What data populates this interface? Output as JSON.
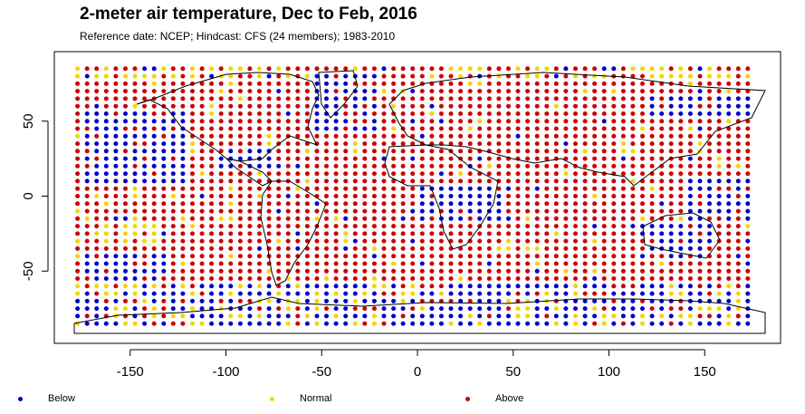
{
  "chart_data": {
    "type": "scatter",
    "title": "2-meter air temperature, Dec to Feb, 2016",
    "subtitle": "Reference date: NCEP; Hindcast: CFS (24 members); 1983-2010",
    "xlabel": "",
    "ylabel": "",
    "xlim": [
      -180,
      180
    ],
    "ylim": [
      -92,
      92
    ],
    "xticks": [
      -150,
      -100,
      -50,
      0,
      50,
      100,
      150
    ],
    "yticks": [
      -50,
      0,
      50
    ],
    "grid": false,
    "legend_position": "bottom",
    "grid_points": {
      "lon_start": -177.5,
      "lon_step": 5,
      "lon_count": 71,
      "lat_start": 85,
      "lat_step": -5,
      "lat_count": 35
    },
    "categories": [
      "Below",
      "Normal",
      "Above"
    ],
    "colors": {
      "Below": "#0000cd",
      "Normal": "#f2d600",
      "Above": "#cd0000"
    },
    "blue_regions": [
      {
        "lon": [
          -175,
          -120
        ],
        "lat": [
          10,
          55
        ]
      },
      {
        "lon": [
          -105,
          -70
        ],
        "lat": [
          20,
          32
        ]
      },
      {
        "lon": [
          -55,
          -20
        ],
        "lat": [
          45,
          80
        ]
      },
      {
        "lon": [
          0,
          45
        ],
        "lat": [
          -15,
          5
        ]
      },
      {
        "lon": [
          115,
          155
        ],
        "lat": [
          -40,
          -20
        ]
      },
      {
        "lon": [
          140,
          175
        ],
        "lat": [
          -15,
          10
        ]
      },
      {
        "lon": [
          120,
          175
        ],
        "lat": [
          55,
          65
        ]
      },
      {
        "lon": [
          -175,
          -130
        ],
        "lat": [
          -55,
          -40
        ]
      }
    ],
    "normal_regions": [
      {
        "lon": [
          -175,
          -140
        ],
        "lat": [
          25,
          35
        ]
      },
      {
        "lon": [
          -45,
          -30
        ],
        "lat": [
          55,
          75
        ]
      },
      {
        "lon": [
          15,
          30
        ],
        "lat": [
          -10,
          -5
        ]
      },
      {
        "lon": [
          140,
          170
        ],
        "lat": [
          5,
          12
        ]
      },
      {
        "lon": [
          -170,
          -135
        ],
        "lat": [
          -30,
          -20
        ]
      },
      {
        "lon": [
          -175,
          -145
        ],
        "lat": [
          -62,
          -55
        ]
      }
    ],
    "legend": [
      {
        "label": "Below",
        "color": "#0000cd"
      },
      {
        "label": "Normal",
        "color": "#f2d600"
      },
      {
        "label": "Above",
        "color": "#cd0000"
      }
    ]
  }
}
